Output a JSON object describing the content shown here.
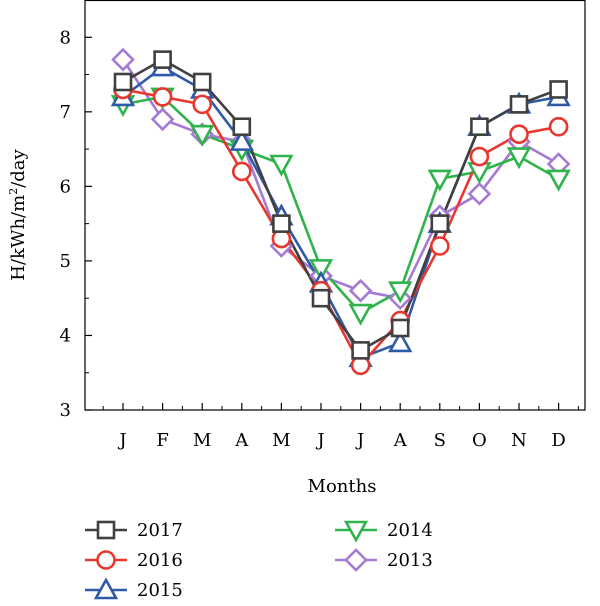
{
  "chart_data": {
    "type": "line",
    "xlabel": "Months",
    "ylabel_main": "H/kWh/m",
    "ylabel_sup": "2",
    "ylabel_tail": "/day",
    "categories": [
      "J",
      "F",
      "M",
      "A",
      "M",
      "J",
      "J",
      "A",
      "S",
      "O",
      "N",
      "D"
    ],
    "ylim": [
      3,
      8.5
    ],
    "yticks": [
      3,
      4,
      5,
      6,
      7,
      8
    ],
    "grid": false,
    "legend_position": "bottom",
    "series": [
      {
        "name": "2017",
        "marker": "square",
        "color": "#404040",
        "values": [
          7.4,
          7.7,
          7.4,
          6.8,
          5.5,
          4.5,
          3.8,
          4.1,
          5.5,
          6.8,
          7.1,
          7.3
        ]
      },
      {
        "name": "2016",
        "marker": "circle",
        "color": "#e8372e",
        "values": [
          7.3,
          7.2,
          7.1,
          6.2,
          5.3,
          4.6,
          3.6,
          4.2,
          5.2,
          6.4,
          6.7,
          6.8
        ]
      },
      {
        "name": "2015",
        "marker": "triangle-up",
        "color": "#2f5aa8",
        "values": [
          7.2,
          7.6,
          7.3,
          6.6,
          5.6,
          4.7,
          3.7,
          3.9,
          5.5,
          6.8,
          7.1,
          7.2
        ]
      },
      {
        "name": "2014",
        "marker": "triangle-down",
        "color": "#2fb34a",
        "values": [
          7.1,
          7.2,
          6.7,
          6.5,
          6.3,
          4.9,
          4.3,
          4.6,
          6.1,
          6.2,
          6.4,
          6.1
        ]
      },
      {
        "name": "2013",
        "marker": "diamond",
        "color": "#a57ad4",
        "values": [
          7.7,
          6.9,
          6.7,
          6.6,
          5.2,
          4.8,
          4.6,
          4.5,
          5.6,
          5.9,
          6.6,
          6.3
        ]
      }
    ]
  }
}
